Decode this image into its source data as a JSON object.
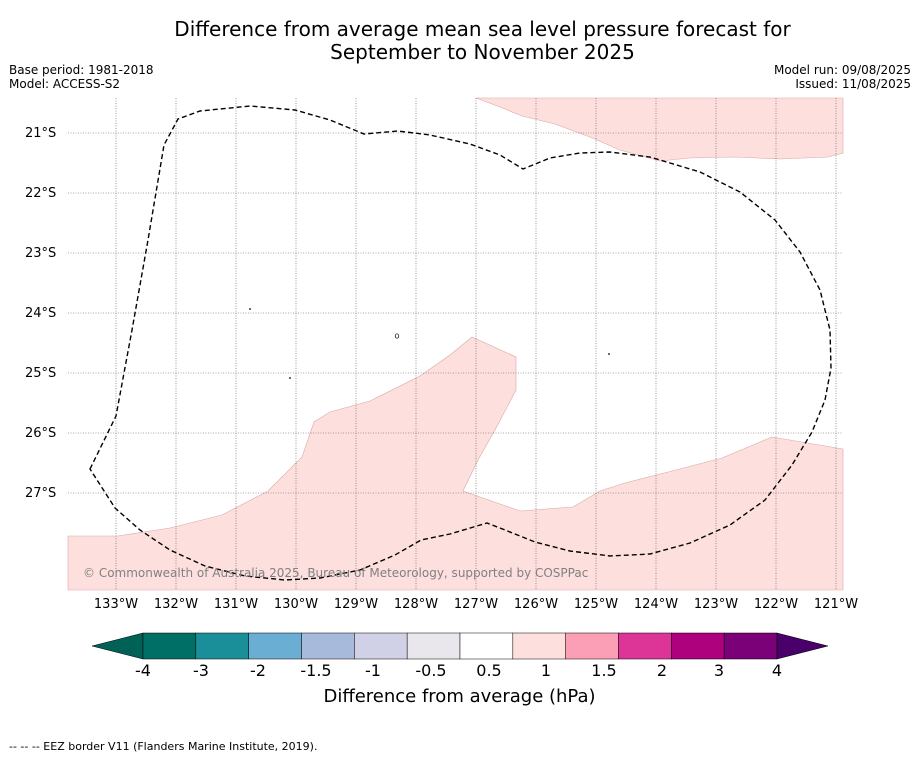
{
  "title_line1": "Difference from average mean sea level pressure forecast for",
  "title_line2": "September to November 2025",
  "base_period": "Base period: 1981-2018",
  "model": "Model: ACCESS-S2",
  "model_run": "Model run: 09/08/2025",
  "issued": "Issued: 11/08/2025",
  "latitudes": [
    "21°S",
    "22°S",
    "23°S",
    "24°S",
    "25°S",
    "26°S",
    "27°S"
  ],
  "longitudes": [
    "133°W",
    "132°W",
    "131°W",
    "130°W",
    "129°W",
    "128°W",
    "127°W",
    "126°W",
    "125°W",
    "124°W",
    "123°W",
    "122°W",
    "121°W"
  ],
  "copyright": "© Commonwealth of Australia 2025, Bureau of Meteorology, supported by COSPPac",
  "colorbar": {
    "ticks": [
      "-4",
      "-3",
      "-2",
      "-1.5",
      "-1",
      "-0.5",
      "0.5",
      "1",
      "1.5",
      "2",
      "3",
      "4"
    ],
    "colors": [
      "#007066",
      "#1b8f99",
      "#6aaed3",
      "#a8badc",
      "#d0d1e6",
      "#e9e6ec",
      "#ffffff",
      "#fde0dd",
      "#fa9fb5",
      "#dd3497",
      "#ae017e",
      "#7a0177"
    ],
    "under_color": "#006157",
    "over_color": "#49006a",
    "label": "Difference from average (hPa)"
  },
  "anomaly_fill_color": "#fde0dd",
  "footnote": "-- -- -- EEZ border V11 (Flanders Marine Institute, 2019)."
}
